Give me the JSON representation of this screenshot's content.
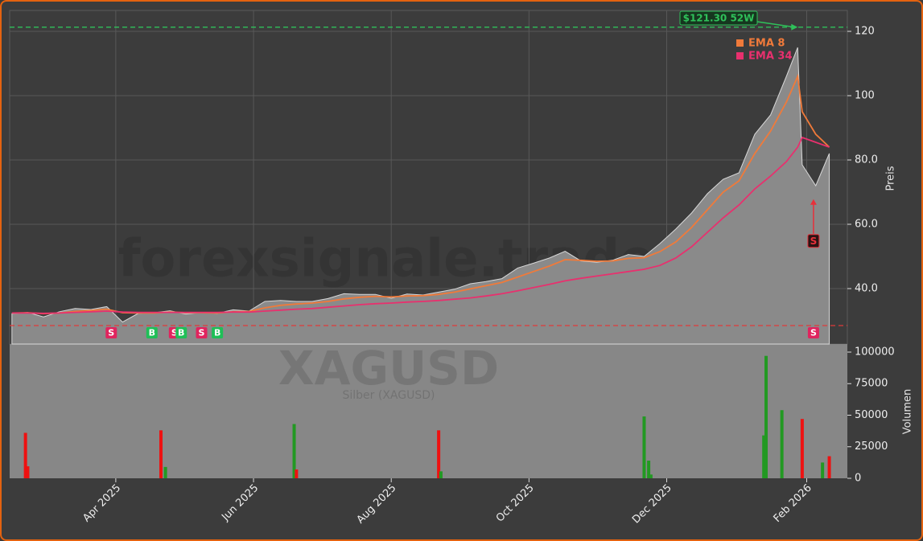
{
  "chart_data": {
    "type": "area",
    "watermark": "forexsignale.trade",
    "symbol": "XAGUSD",
    "subtitle": "Silber (XAGUSD)",
    "ylabel": "Preis",
    "color": "#8a8a8a",
    "grid": true,
    "x": [
      "2025-02-14",
      "2025-02-21",
      "2025-02-28",
      "2025-03-07",
      "2025-03-14",
      "2025-03-21",
      "2025-03-28",
      "2025-04-04",
      "2025-04-11",
      "2025-04-18",
      "2025-04-25",
      "2025-05-02",
      "2025-05-09",
      "2025-05-16",
      "2025-05-23",
      "2025-05-30",
      "2025-06-06",
      "2025-06-13",
      "2025-06-20",
      "2025-06-27",
      "2025-07-04",
      "2025-07-11",
      "2025-07-18",
      "2025-07-25",
      "2025-08-01",
      "2025-08-08",
      "2025-08-15",
      "2025-08-22",
      "2025-08-29",
      "2025-09-05",
      "2025-09-12",
      "2025-09-19",
      "2025-09-26",
      "2025-10-03",
      "2025-10-10",
      "2025-10-17",
      "2025-10-24",
      "2025-10-31",
      "2025-11-07",
      "2025-11-14",
      "2025-11-21",
      "2025-11-28",
      "2025-12-05",
      "2025-12-12",
      "2025-12-19",
      "2025-12-26",
      "2026-01-02",
      "2026-01-09",
      "2026-01-16",
      "2026-01-23",
      "2026-01-28",
      "2026-01-30",
      "2026-02-05",
      "2026-02-11"
    ],
    "values": [
      32.2,
      32.6,
      31.2,
      32.8,
      33.8,
      33.5,
      34.4,
      29.6,
      32.3,
      32.5,
      33.1,
      32.1,
      32.6,
      32.3,
      33.4,
      33.0,
      36.0,
      36.3,
      36.0,
      36.0,
      36.9,
      38.4,
      38.2,
      38.2,
      37.0,
      38.3,
      38.0,
      38.9,
      39.8,
      41.5,
      42.2,
      43.1,
      46.4,
      47.9,
      49.5,
      51.6,
      48.6,
      48.2,
      48.8,
      50.6,
      50.0,
      54.0,
      58.5,
      63.5,
      69.5,
      74.0,
      76.0,
      88.0,
      94.0,
      106.0,
      115.0,
      78.5,
      72.0,
      82.0
    ],
    "series": [
      {
        "name": "EMA 8",
        "color": "#f07a3a",
        "values": [
          32.4,
          32.5,
          32.2,
          32.4,
          32.9,
          33.2,
          33.6,
          32.5,
          32.4,
          32.4,
          32.7,
          32.5,
          32.5,
          32.4,
          32.8,
          32.9,
          34.0,
          34.8,
          35.2,
          35.5,
          36.0,
          36.8,
          37.3,
          37.6,
          37.4,
          37.7,
          37.8,
          38.2,
          38.9,
          39.9,
          40.9,
          41.9,
          43.6,
          45.3,
          47.0,
          49.0,
          48.8,
          48.5,
          48.6,
          49.4,
          49.6,
          51.5,
          54.5,
          59.0,
          64.5,
          70.0,
          73.5,
          82.0,
          89.0,
          98.0,
          106.0,
          95.0,
          88.0,
          84.0
        ]
      },
      {
        "name": "EMA 34",
        "color": "#e8306e",
        "values": [
          32.4,
          32.4,
          32.3,
          32.4,
          32.6,
          32.8,
          33.0,
          32.7,
          32.6,
          32.6,
          32.6,
          32.6,
          32.6,
          32.6,
          32.7,
          32.7,
          33.0,
          33.3,
          33.6,
          33.8,
          34.2,
          34.6,
          35.0,
          35.3,
          35.5,
          35.8,
          36.0,
          36.3,
          36.7,
          37.1,
          37.7,
          38.4,
          39.3,
          40.3,
          41.3,
          42.4,
          43.2,
          43.9,
          44.6,
          45.3,
          46.0,
          47.2,
          49.5,
          53.0,
          57.5,
          62.0,
          66.0,
          71.0,
          75.0,
          79.5,
          84.0,
          87.0,
          85.5,
          84.0
        ]
      }
    ],
    "xlim": [
      "2025-02-13",
      "2026-02-19"
    ],
    "xticks": [
      {
        "value": "2025-04-01",
        "label": "Apr 2025"
      },
      {
        "value": "2025-06-01",
        "label": "Jun 2025"
      },
      {
        "value": "2025-08-01",
        "label": "Aug 2025"
      },
      {
        "value": "2025-10-01",
        "label": "Oct 2025"
      },
      {
        "value": "2025-12-01",
        "label": "Dec 2025"
      },
      {
        "value": "2026-02-01",
        "label": "Feb 2026"
      }
    ],
    "ylim": [
      22.75,
      126.5
    ],
    "yticks": [
      {
        "value": 40,
        "label": "40.0"
      },
      {
        "value": 60,
        "label": "60.0"
      },
      {
        "value": 80,
        "label": "80.0"
      },
      100,
      120
    ],
    "high_52w": {
      "value": 121.3,
      "label": "$121.30 52W",
      "x": "2026-01-28",
      "color": "#2fc15a"
    },
    "low_52w": {
      "value": 28.5,
      "color": "#e03a3a"
    },
    "signals": {
      "x": [
        "2025-03-30",
        "2025-04-17",
        "2025-04-27",
        "2025-04-30",
        "2025-05-09",
        "2025-05-16",
        "2026-02-04"
      ],
      "labels": [
        "S",
        "B",
        "S",
        "B",
        "S",
        "B",
        "S"
      ],
      "colors": [
        "#e0245e",
        "#1fbf57",
        "#e0245e",
        "#1fbf57",
        "#e0245e",
        "#1fbf57",
        "#e0245e"
      ]
    },
    "latest_signal": {
      "x": "2026-02-04",
      "label": "S",
      "y": 54.8,
      "target": 67.8,
      "color": "#e8303a"
    },
    "volume": {
      "ylabel": "Volumen",
      "x": [
        "2025-02-20",
        "2025-02-21",
        "2025-04-21",
        "2025-04-23",
        "2025-06-19",
        "2025-06-20",
        "2025-08-22",
        "2025-08-23",
        "2025-11-21",
        "2025-11-23",
        "2025-11-24",
        "2026-01-13",
        "2026-01-14",
        "2026-01-21",
        "2026-01-30",
        "2026-02-08",
        "2026-02-11"
      ],
      "values": [
        36000,
        9500,
        38000,
        9000,
        43000,
        7000,
        38000,
        5500,
        49000,
        14000,
        3000,
        34000,
        97000,
        54000,
        47000,
        12500,
        17500
      ],
      "colors": [
        "#ee1111",
        "#ee1111",
        "#ee1111",
        "#229922",
        "#229922",
        "#ee1111",
        "#ee1111",
        "#229922",
        "#229922",
        "#229922",
        "#229922",
        "#229922",
        "#229922",
        "#229922",
        "#ee1111",
        "#229922",
        "#ee1111"
      ],
      "ylim": [
        0,
        106369
      ],
      "yticks": [
        0,
        25000,
        50000,
        75000,
        100000
      ]
    }
  }
}
